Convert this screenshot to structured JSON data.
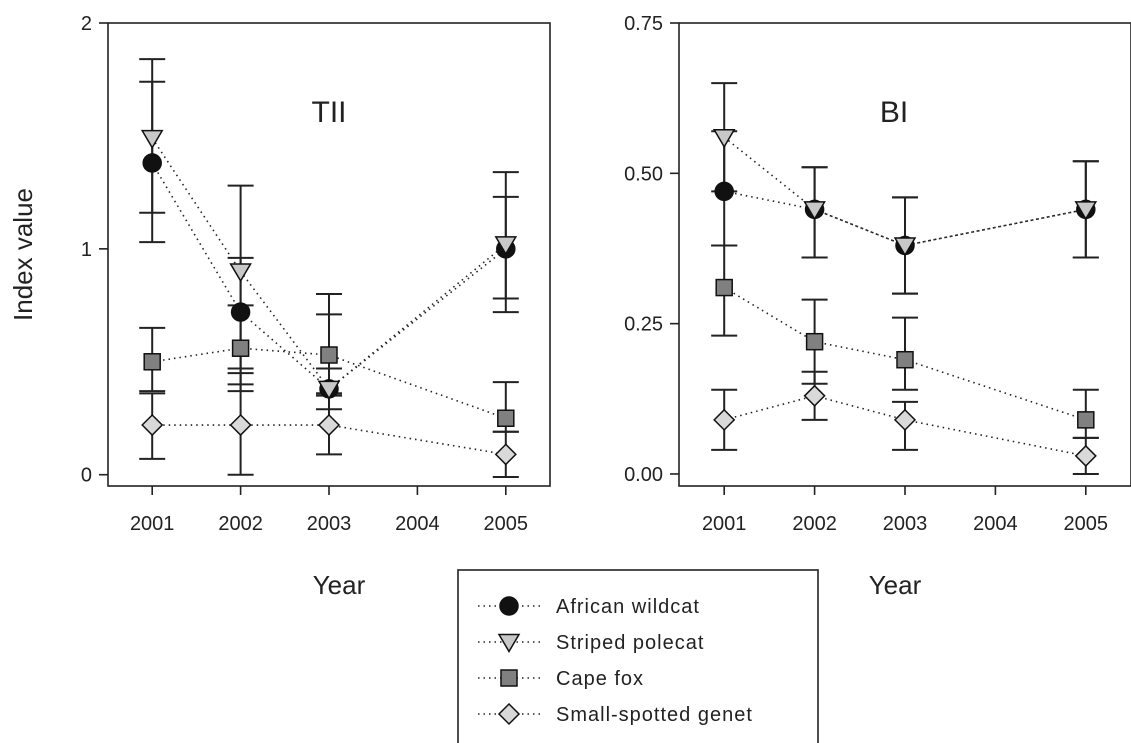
{
  "colors": {
    "african-wildcat": "#111111",
    "striped-polecat": "#c8c8c8",
    "cape-fox": "#808080",
    "small-spotted-genet": "#d9d9d9"
  },
  "legend_items": [
    {
      "name": "African wildcat",
      "marker": "circle",
      "color": "#111111"
    },
    {
      "name": "Striped polecat",
      "marker": "triangle-down",
      "color": "#c8c8c8"
    },
    {
      "name": "Cape fox",
      "marker": "square",
      "color": "#808080"
    },
    {
      "name": "Small-spotted genet",
      "marker": "diamond",
      "color": "#d9d9d9"
    }
  ],
  "chart_data": [
    {
      "type": "line",
      "title": "TII",
      "xlabel": "Year",
      "ylabel": "Index value",
      "x_ticks": [
        "2001",
        "2002",
        "2003",
        "2004",
        "2005"
      ],
      "y_ticks": [
        0,
        1,
        2
      ],
      "y_tick_labels": [
        "0",
        "1",
        "2"
      ],
      "xlim": [
        2000.5,
        2005.5
      ],
      "ylim": [
        -0.05,
        2
      ],
      "grid": false,
      "series": [
        {
          "name": "African wildcat",
          "x": [
            2001,
            2002,
            2003,
            2005
          ],
          "y": [
            1.38,
            0.72,
            0.38,
            1.0
          ],
          "err_low": [
            1.03,
            0.4,
            0.29,
            0.72
          ],
          "err_high": [
            1.74,
            0.96,
            0.47,
            1.23
          ]
        },
        {
          "name": "Striped polecat",
          "x": [
            2001,
            2002,
            2003,
            2005
          ],
          "y": [
            1.49,
            0.9,
            0.38,
            1.02
          ],
          "err_low": [
            1.16,
            0.47,
            0.36,
            0.78
          ],
          "err_high": [
            1.84,
            1.28,
            0.8,
            1.34
          ]
        },
        {
          "name": "Cape fox",
          "x": [
            2001,
            2002,
            2003,
            2005
          ],
          "y": [
            0.5,
            0.56,
            0.53,
            0.25
          ],
          "err_low": [
            0.37,
            0.37,
            0.35,
            0.19
          ],
          "err_high": [
            0.65,
            0.75,
            0.71,
            0.41
          ]
        },
        {
          "name": "Small-spotted genet",
          "x": [
            2001,
            2002,
            2003,
            2005
          ],
          "y": [
            0.22,
            0.22,
            0.22,
            0.09
          ],
          "err_low": [
            0.07,
            0.0,
            0.09,
            -0.01
          ],
          "err_high": [
            0.36,
            0.45,
            0.36,
            0.19
          ]
        }
      ]
    },
    {
      "type": "line",
      "title": "BI",
      "xlabel": "Year",
      "ylabel": "",
      "x_ticks": [
        "2001",
        "2002",
        "2003",
        "2004",
        "2005"
      ],
      "y_ticks": [
        0,
        0.25,
        0.5,
        0.75
      ],
      "y_tick_labels": [
        "0.00",
        "0.25",
        "0.50",
        "0.75"
      ],
      "xlim": [
        2000.5,
        2005.5
      ],
      "ylim": [
        -0.02,
        0.75
      ],
      "grid": false,
      "series": [
        {
          "name": "African wildcat",
          "x": [
            2001,
            2002,
            2003,
            2005
          ],
          "y": [
            0.47,
            0.44,
            0.38,
            0.44
          ],
          "err_low": [
            0.38,
            0.36,
            0.3,
            0.36
          ],
          "err_high": [
            0.57,
            0.51,
            0.46,
            0.52
          ]
        },
        {
          "name": "Striped polecat",
          "x": [
            2001,
            2002,
            2003,
            2005
          ],
          "y": [
            0.56,
            0.44,
            0.38,
            0.44
          ],
          "err_low": [
            0.47,
            0.36,
            0.3,
            0.36
          ],
          "err_high": [
            0.65,
            0.51,
            0.46,
            0.52
          ]
        },
        {
          "name": "Cape fox",
          "x": [
            2001,
            2002,
            2003,
            2005
          ],
          "y": [
            0.31,
            0.22,
            0.19,
            0.09
          ],
          "err_low": [
            0.23,
            0.15,
            0.14,
            0.06
          ],
          "err_high": [
            0.38,
            0.29,
            0.26,
            0.14
          ]
        },
        {
          "name": "Small-spotted genet",
          "x": [
            2001,
            2002,
            2003,
            2005
          ],
          "y": [
            0.09,
            0.13,
            0.09,
            0.03
          ],
          "err_low": [
            0.04,
            0.09,
            0.04,
            0.0
          ],
          "err_high": [
            0.14,
            0.17,
            0.12,
            0.06
          ]
        }
      ]
    }
  ]
}
